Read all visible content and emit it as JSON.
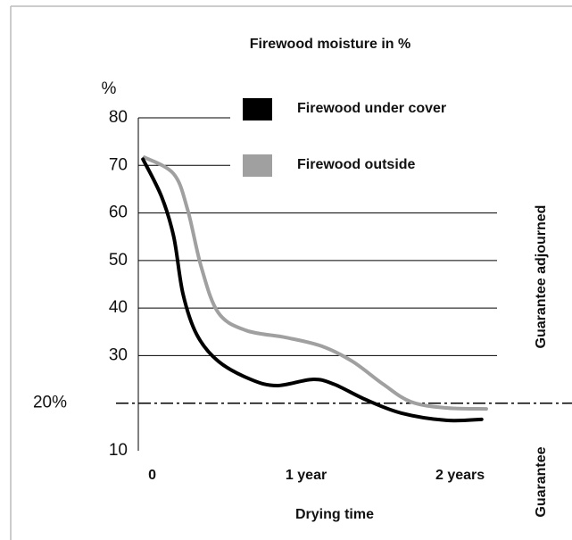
{
  "chart_data": {
    "type": "line",
    "title": "Firewood moisture in %",
    "y_unit": "%",
    "xlabel": "Drying time",
    "annotations": [
      "Guarantee adjourned",
      "Guarantee"
    ],
    "xlim": [
      -0.09,
      2.24
    ],
    "ylim": [
      10,
      80
    ],
    "xticks": [
      0,
      {
        "value": 1,
        "label": "1 year"
      },
      {
        "value": 2,
        "label": "2 years"
      }
    ],
    "yticks": [
      10,
      {
        "value": 20,
        "label": "20%"
      },
      30,
      40,
      50,
      60,
      70,
      80
    ],
    "grid": true,
    "legend": "top",
    "series": [
      {
        "name": "Firewood under cover",
        "color": "#000000",
        "x": [
          -0.06,
          0.06,
          0.14,
          0.2,
          0.29,
          0.43,
          0.64,
          0.81,
          1.04,
          1.18,
          1.39,
          1.62,
          1.91,
          2.14
        ],
        "values": [
          71.3,
          63.5,
          55,
          43,
          34.4,
          28.8,
          25,
          23.7,
          25,
          24,
          20.7,
          17.9,
          16.4,
          16.6
        ]
      },
      {
        "name": "Firewood outside",
        "color": "#a0a0a0",
        "x": [
          -0.05,
          0.14,
          0.23,
          0.32,
          0.43,
          0.61,
          0.87,
          1.1,
          1.3,
          1.5,
          1.68,
          1.91,
          2.17
        ],
        "values": [
          71.7,
          68.2,
          60.7,
          48.5,
          39,
          35.3,
          33.8,
          32,
          28.8,
          24,
          20.3,
          19,
          18.8
        ]
      }
    ]
  }
}
